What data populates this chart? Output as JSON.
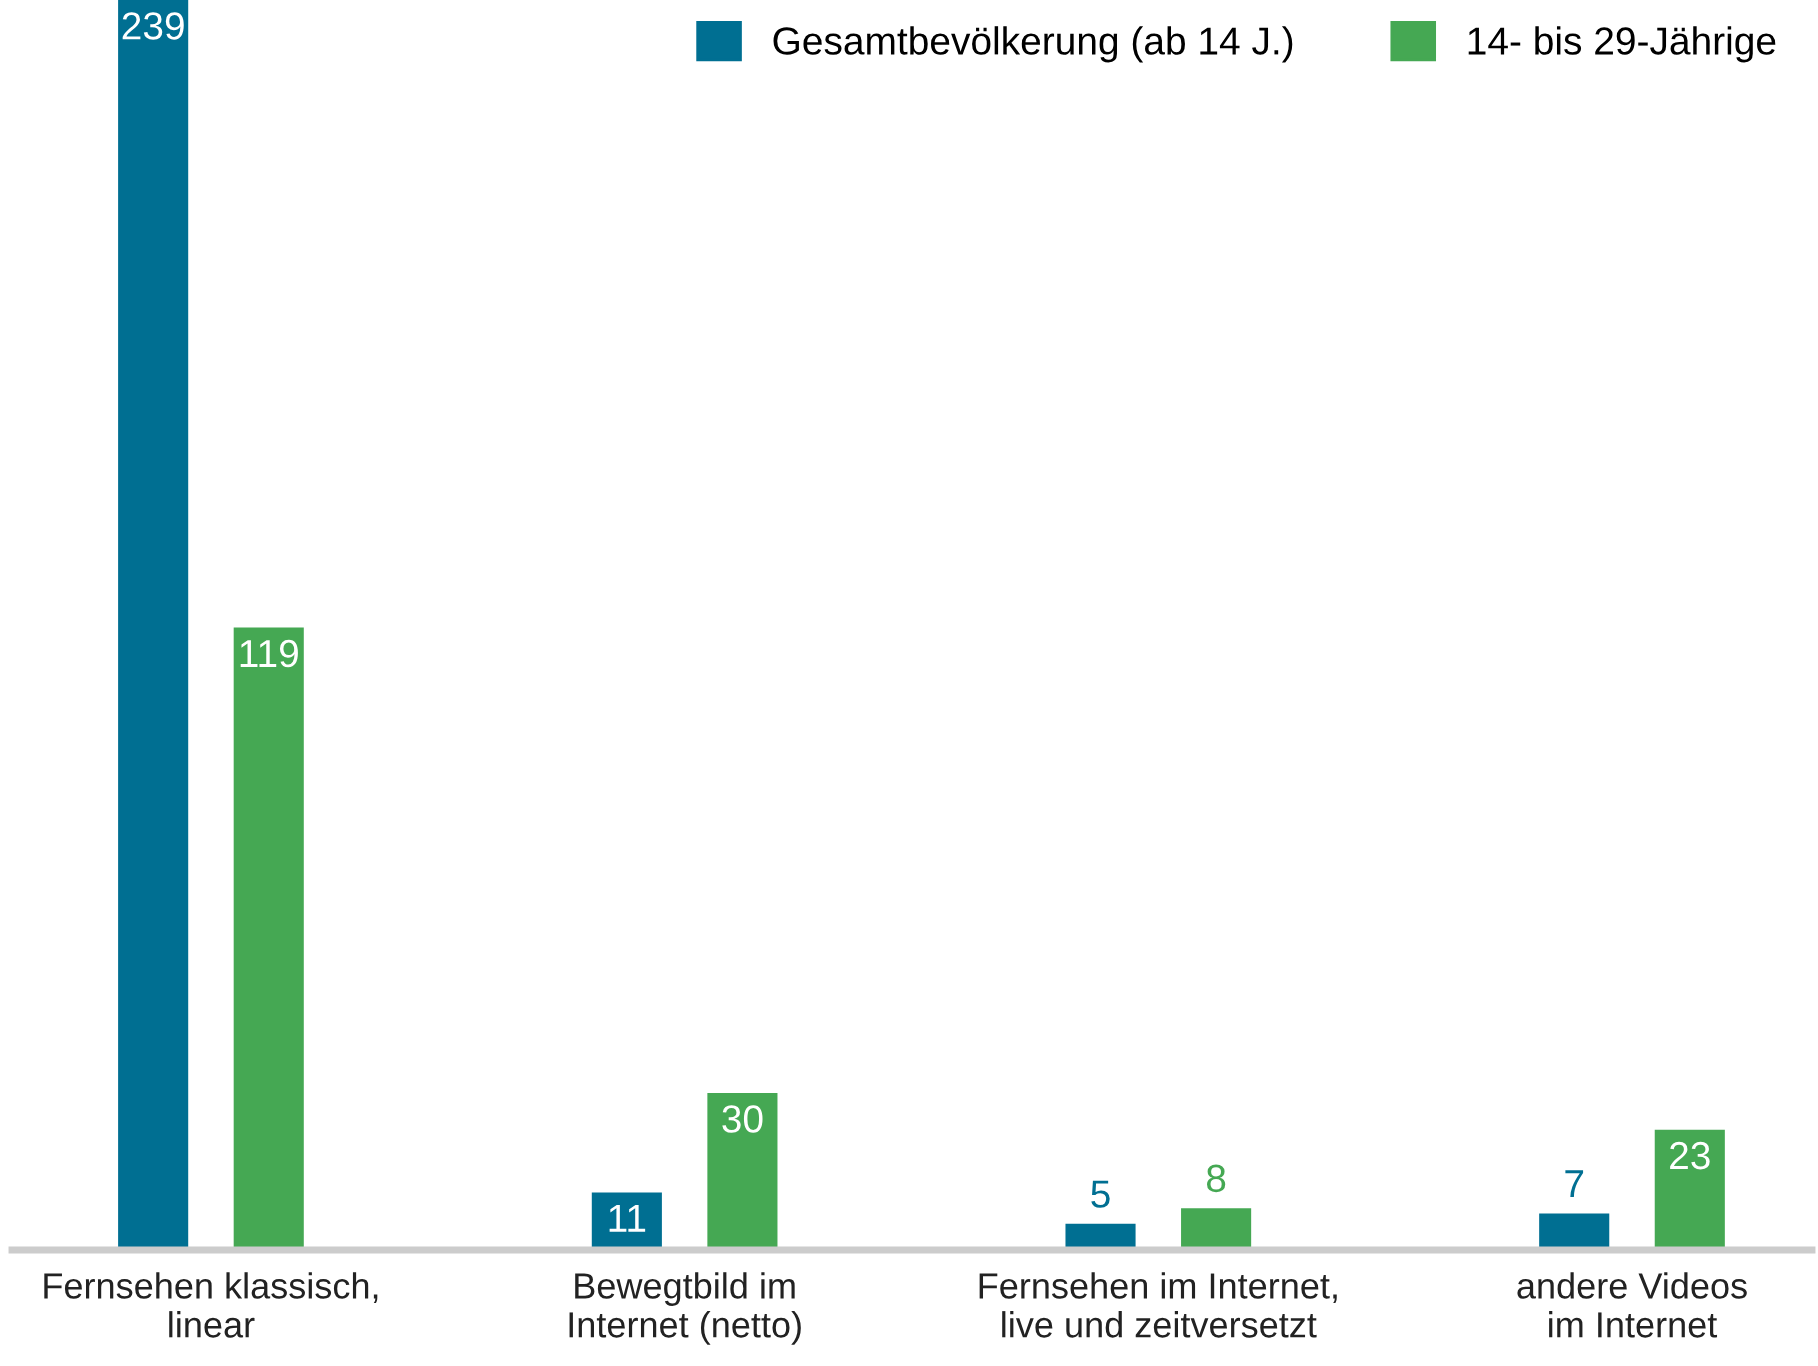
{
  "chart_data": {
    "type": "bar",
    "categories": [
      "Fernsehen klassisch,\nlinear",
      "Bewegtbild im\nInternet (netto)",
      "Fernsehen im Internet,\nlive und zeitversetzt",
      "andere Videos\nim Internet"
    ],
    "series": [
      {
        "name": "Gesamtbevölkerung (ab 14 J.)",
        "color": "#006f92",
        "values": [
          239,
          11,
          5,
          7
        ]
      },
      {
        "name": "14- bis 29-Jährige",
        "color": "#45a853",
        "values": [
          119,
          30,
          8,
          23
        ]
      }
    ],
    "data_labels": true,
    "legend": "top right",
    "grid": false
  }
}
